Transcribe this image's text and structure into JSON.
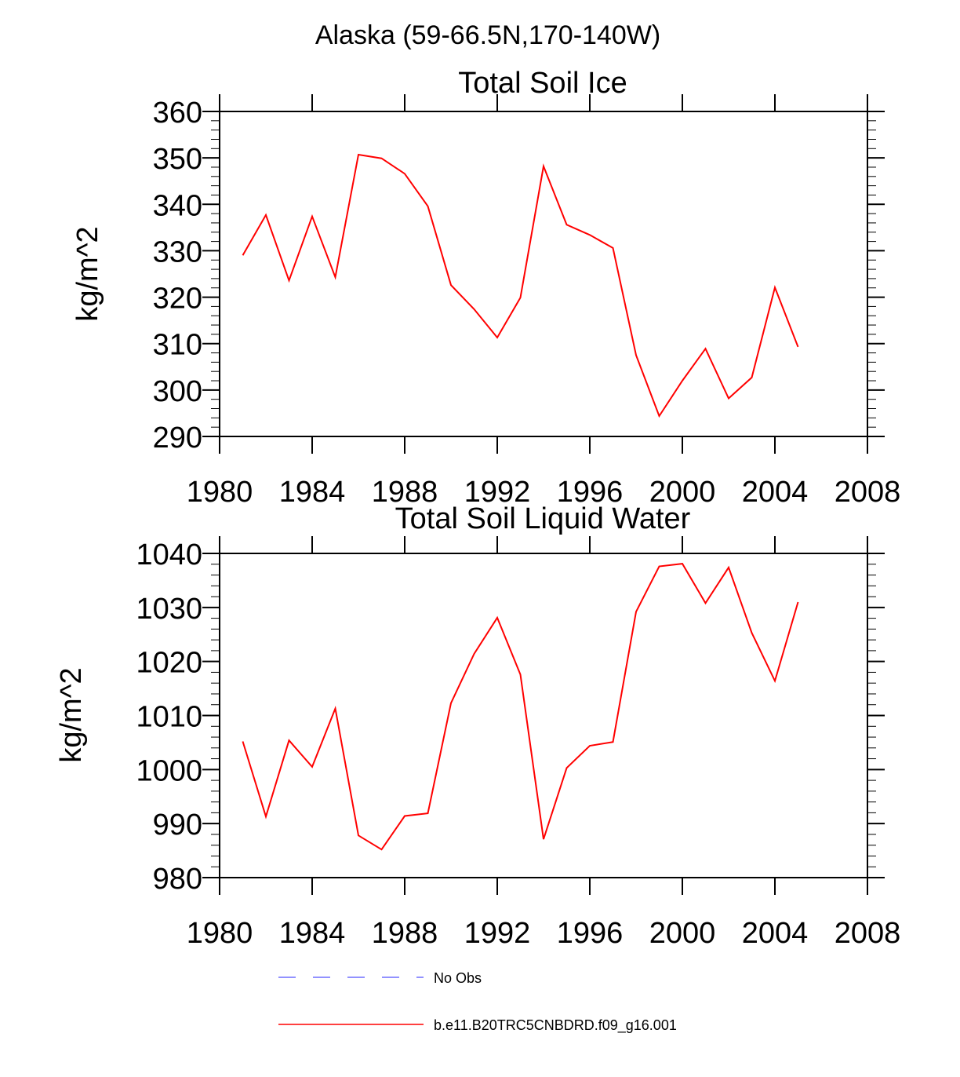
{
  "figure_title": "Alaska (59-66.5N,170-140W)",
  "colors": {
    "model": "#ff0000",
    "obs": "#6e6eff",
    "axis": "#000000"
  },
  "chart_data": [
    {
      "type": "line",
      "title": "Total Soil Ice",
      "xlabel": "",
      "ylabel": "kg/m^2",
      "xlim": [
        1980,
        2008
      ],
      "ylim": [
        290,
        360
      ],
      "xticks": [
        1980,
        1984,
        1988,
        1992,
        1996,
        2000,
        2004,
        2008
      ],
      "yticks": [
        290,
        300,
        310,
        320,
        330,
        340,
        350,
        360
      ],
      "xtick_labels": [
        "1980",
        "1984",
        "1988",
        "1992",
        "1996",
        "2000",
        "2004",
        "2008"
      ],
      "ytick_labels": [
        "290",
        "300",
        "310",
        "320",
        "330",
        "340",
        "350",
        "360"
      ],
      "y_minor_step": 2,
      "series": [
        {
          "name": "b.e11.B20TRC5CNBDRD.f09_g16.001",
          "x": [
            1981,
            1982,
            1983,
            1984,
            1985,
            1986,
            1987,
            1988,
            1989,
            1990,
            1991,
            1992,
            1993,
            1994,
            1995,
            1996,
            1997,
            1998,
            1999,
            2000,
            2001,
            2002,
            2003,
            2004,
            2005
          ],
          "values": [
            329.0,
            337.7,
            323.6,
            337.4,
            324.3,
            350.7,
            349.9,
            346.6,
            339.6,
            322.6,
            317.4,
            311.3,
            319.9,
            348.2,
            335.6,
            333.4,
            330.6,
            307.5,
            294.4,
            302.0,
            308.9,
            298.2,
            302.7,
            322.1,
            309.3
          ]
        }
      ]
    },
    {
      "type": "line",
      "title": "Total Soil Liquid Water",
      "xlabel": "",
      "ylabel": "kg/m^2",
      "xlim": [
        1980,
        2008
      ],
      "ylim": [
        980,
        1040
      ],
      "xticks": [
        1980,
        1984,
        1988,
        1992,
        1996,
        2000,
        2004,
        2008
      ],
      "yticks": [
        980,
        990,
        1000,
        1010,
        1020,
        1030,
        1040
      ],
      "xtick_labels": [
        "1980",
        "1984",
        "1988",
        "1992",
        "1996",
        "2000",
        "2004",
        "2008"
      ],
      "ytick_labels": [
        "980",
        "990",
        "1000",
        "1010",
        "1020",
        "1030",
        "1040"
      ],
      "y_minor_step": 2,
      "series": [
        {
          "name": "b.e11.B20TRC5CNBDRD.f09_g16.001",
          "x": [
            1981,
            1982,
            1983,
            1984,
            1985,
            1986,
            1987,
            1988,
            1989,
            1990,
            1991,
            1992,
            1993,
            1994,
            1995,
            1996,
            1997,
            1998,
            1999,
            2000,
            2001,
            2002,
            2003,
            2004,
            2005
          ],
          "values": [
            1005.2,
            991.3,
            1005.4,
            1000.5,
            1011.3,
            987.8,
            985.2,
            991.4,
            991.9,
            1012.3,
            1021.4,
            1028.1,
            1017.6,
            987.1,
            1000.3,
            1004.4,
            1005.1,
            1029.2,
            1037.6,
            1038.1,
            1030.8,
            1037.4,
            1025.3,
            1016.4,
            1031.0
          ]
        }
      ]
    }
  ],
  "legend": [
    {
      "label": "No Obs",
      "style": "dashed",
      "color": "#6e6eff"
    },
    {
      "label": "b.e11.B20TRC5CNBDRD.f09_g16.001",
      "style": "solid",
      "color": "#ff0000"
    }
  ]
}
